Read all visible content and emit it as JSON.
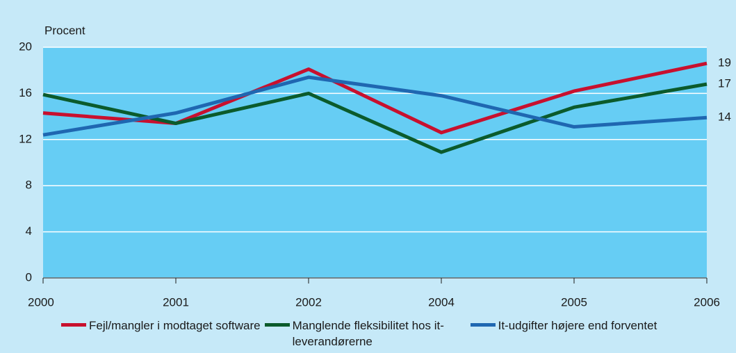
{
  "chart_data": {
    "type": "line",
    "y_label": "Procent",
    "categories": [
      "2000",
      "2001",
      "2002",
      "2004",
      "2005",
      "2006"
    ],
    "series": [
      {
        "name": "Fejl/mangler i modtaget software",
        "color": "#c8102e",
        "values": [
          14.3,
          13.4,
          18.1,
          12.6,
          16.2,
          18.6
        ],
        "value_labels": [
          null,
          null,
          null,
          null,
          null,
          "19"
        ]
      },
      {
        "name": "Manglende fleksibilitet hos it-leverandørerne",
        "color": "#0b5b2c",
        "values": [
          15.9,
          13.4,
          16.0,
          10.9,
          14.8,
          16.8
        ],
        "value_labels": [
          null,
          null,
          null,
          null,
          null,
          "17"
        ]
      },
      {
        "name": "It-udgifter højere end forventet",
        "color": "#1f67b1",
        "values": [
          12.4,
          14.3,
          17.4,
          15.8,
          13.1,
          13.9
        ],
        "value_labels": [
          null,
          null,
          null,
          null,
          null,
          "14"
        ]
      }
    ],
    "ylim": [
      0,
      20
    ],
    "yticks": [
      0,
      4,
      8,
      12,
      16,
      20
    ],
    "grid": true
  }
}
